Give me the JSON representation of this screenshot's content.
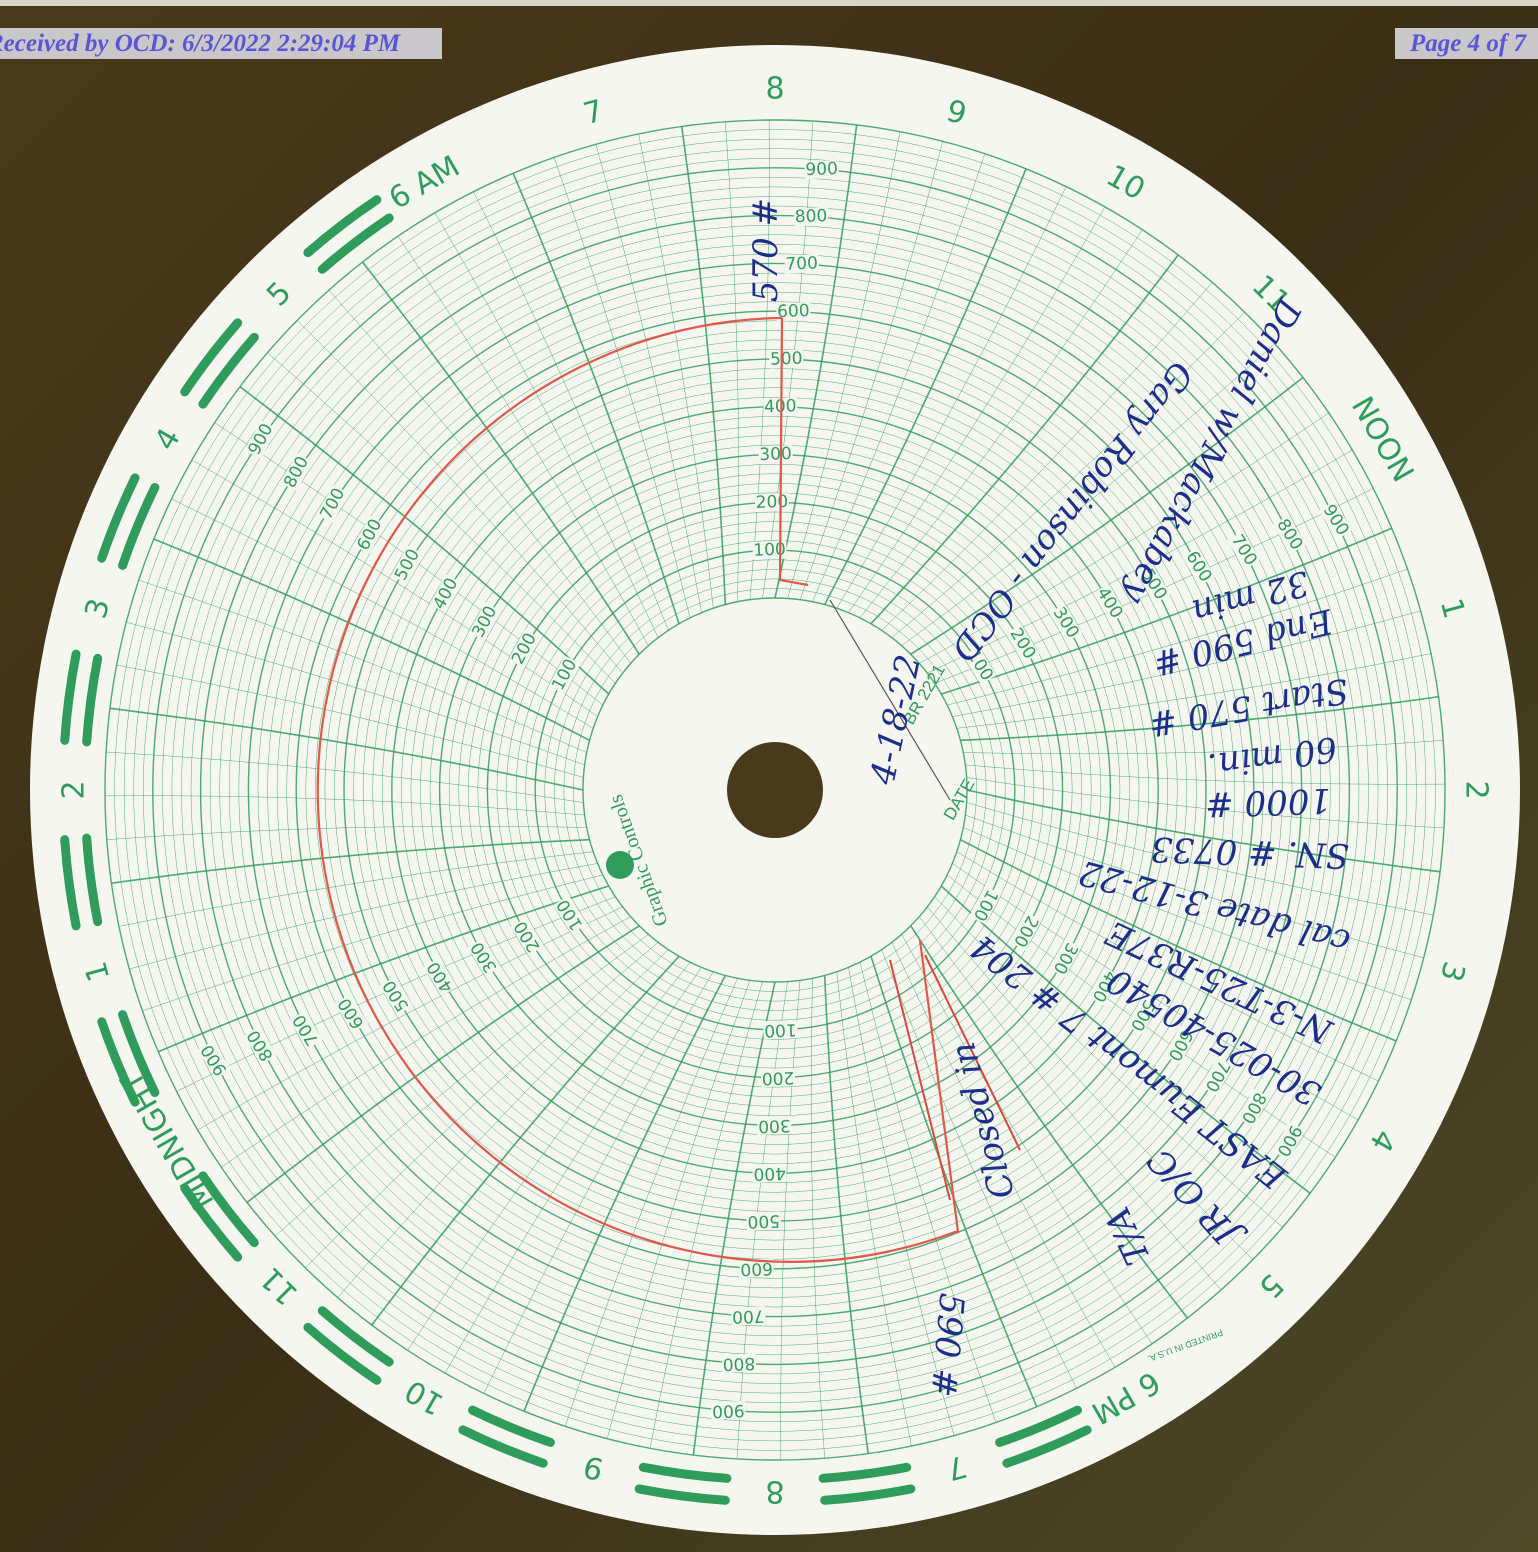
{
  "header": {
    "received": "Received by OCD: 6/3/2022 2:29:04 PM",
    "page": "Page 4 of 7"
  },
  "chart": {
    "hour_labels": [
      "8",
      "9",
      "10",
      "11",
      "NOON",
      "1",
      "2",
      "3",
      "4",
      "5",
      "6 PM",
      "7",
      "8",
      "9",
      "10",
      "11",
      "MIDNIGHT",
      "1",
      "2",
      "3",
      "4",
      "5",
      "6 AM",
      "7"
    ],
    "pressure_labels": [
      "100",
      "200",
      "300",
      "400",
      "500",
      "600",
      "700",
      "800",
      "900"
    ],
    "brand": "Graphic Controls",
    "model": "BR 2221",
    "date_label": "DATE",
    "printed": "PRINTED IN U.S.A."
  },
  "notes": [
    "570 #",
    "4-18-22",
    "590 #",
    "Closed in",
    "T/A",
    "JR O/C",
    "EAST Eumont 7 # 204",
    "30-025-40540",
    "N-3-T25-R37E",
    "cal date 3-12-22",
    "SN. # 0733",
    "1000 #",
    "60 min.",
    "Start 570 #",
    "End 590 #",
    "32 min",
    "Gary Robinson - OCD",
    "Daniel w/Mackabey"
  ]
}
